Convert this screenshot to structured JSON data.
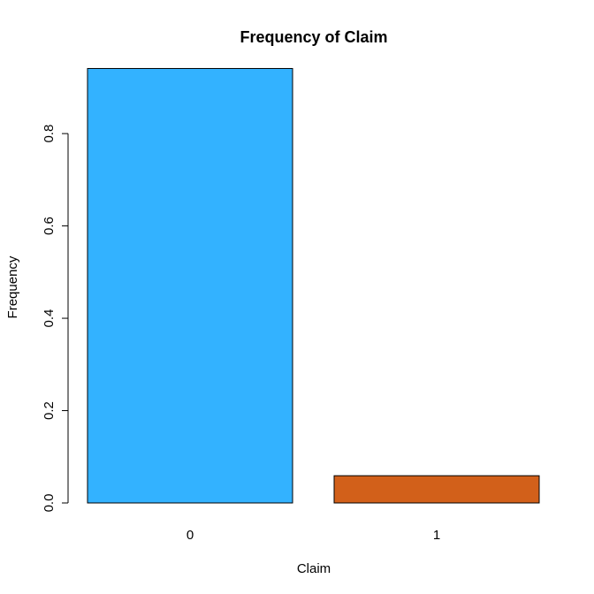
{
  "chart_data": {
    "type": "bar",
    "title": "Frequency of Claim",
    "xlabel": "Claim",
    "ylabel": "Frequency",
    "categories": [
      "0",
      "1"
    ],
    "values": [
      0.941,
      0.059
    ],
    "colors": [
      "#33B2FF",
      "#D2601A"
    ],
    "ylim": [
      0,
      0.94
    ],
    "yticks": [
      0.0,
      0.2,
      0.4,
      0.6,
      0.8
    ],
    "ytick_labels": [
      "0.0",
      "0.2",
      "0.4",
      "0.6",
      "0.8"
    ],
    "grid": false,
    "legend": "none"
  }
}
